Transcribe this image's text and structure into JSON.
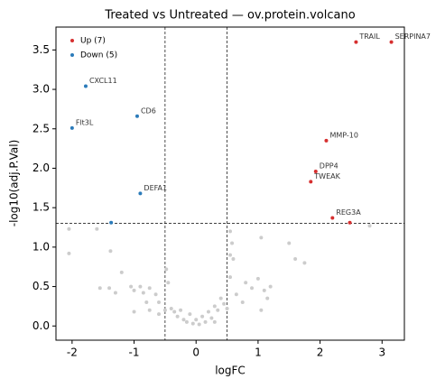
{
  "chart_data": {
    "type": "scatter",
    "title": "Treated vs Untreated — ov.protein.volcano",
    "x_label": "logFC",
    "y_label": "-log10(adj.P.Val)",
    "xlim": [
      -2.26,
      3.36
    ],
    "ylim": [
      -0.18,
      3.79
    ],
    "xticks": [
      -2,
      -1,
      0,
      1,
      2,
      3
    ],
    "yticks": [
      {
        "value": 0,
        "label": "0.0"
      },
      {
        "value": 0.5,
        "label": "0.5"
      },
      {
        "value": 1,
        "label": "1.0"
      },
      {
        "value": 1.5,
        "label": "1.5"
      },
      {
        "value": 2,
        "label": "2.0"
      },
      {
        "value": 2.5,
        "label": "2.5"
      },
      {
        "value": 3,
        "label": "3.0"
      },
      {
        "value": 3.5,
        "label": "3.5"
      }
    ],
    "vlines": [
      -0.5,
      0.5
    ],
    "hlines": [
      1.3
    ],
    "legend": "upper left",
    "series": [
      {
        "color": "#cccccc",
        "x": [
          -2.05,
          -1.6,
          -2.05,
          -1.38,
          -1.2,
          -1.55,
          -1.4,
          -1.3,
          -1.05,
          -1.0,
          -0.9,
          -0.85,
          -0.8,
          -0.75,
          -0.65,
          -0.6,
          -0.5,
          -0.48,
          -0.45,
          -0.4,
          -0.35,
          -0.3,
          -0.25,
          -0.2,
          -0.15,
          -0.1,
          -0.05,
          0.0,
          0.05,
          0.1,
          0.15,
          0.2,
          0.25,
          0.3,
          0.35,
          0.4,
          0.45,
          0.5,
          0.55,
          0.58,
          0.6,
          0.55,
          0.65,
          0.75,
          0.8,
          0.9,
          1.0,
          1.1,
          1.15,
          1.05,
          1.2,
          1.05,
          1.5,
          1.6,
          1.75,
          0.55,
          2.8,
          -0.75,
          -0.6,
          0.3,
          -1.0
        ],
        "values": [
          1.23,
          1.23,
          0.92,
          0.95,
          0.68,
          0.48,
          0.48,
          0.42,
          0.5,
          0.45,
          0.5,
          0.42,
          0.3,
          0.48,
          0.4,
          0.3,
          0.2,
          0.72,
          0.55,
          0.22,
          0.18,
          0.12,
          0.2,
          0.08,
          0.05,
          0.15,
          0.03,
          0.08,
          0.02,
          0.12,
          0.05,
          0.18,
          0.1,
          0.25,
          0.2,
          0.35,
          0.28,
          0.22,
          1.2,
          1.05,
          0.85,
          0.62,
          0.4,
          0.3,
          0.55,
          0.48,
          0.6,
          0.45,
          0.35,
          0.2,
          0.5,
          1.12,
          1.05,
          0.85,
          0.8,
          0.9,
          1.27,
          0.2,
          0.15,
          0.05,
          0.18
        ]
      },
      {
        "name": "Up (7)",
        "color": "#d62f2f",
        "x": [
          2.58,
          3.15,
          2.1,
          1.93,
          1.85,
          2.2,
          2.48
        ],
        "values": [
          3.6,
          3.6,
          2.35,
          1.96,
          1.83,
          1.37,
          1.31
        ],
        "labels": [
          "TRAIL",
          "SERPINA7",
          "MMP-10",
          "DPP4",
          "TWEAK",
          "REG3A",
          null
        ]
      },
      {
        "name": "Down (5)",
        "color": "#2b7bba",
        "x": [
          -1.78,
          -0.95,
          -2.0,
          -0.9,
          -1.37
        ],
        "values": [
          3.04,
          2.66,
          2.51,
          1.68,
          1.31
        ],
        "labels": [
          "CXCL11",
          "CD6",
          "Flt3L",
          "DEFA1",
          null
        ]
      }
    ]
  }
}
